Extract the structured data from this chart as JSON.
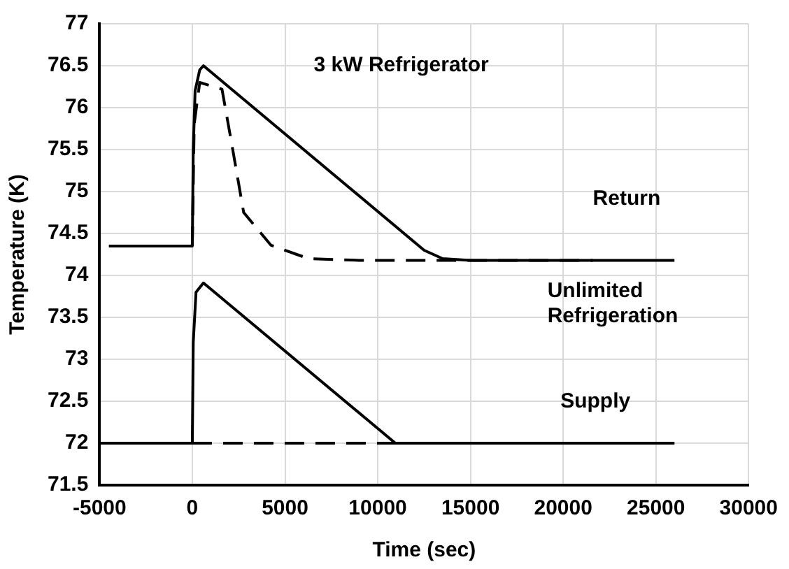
{
  "chart_data": {
    "type": "line",
    "xlabel": "Time (sec)",
    "ylabel": "Temperature (K)",
    "xlim": [
      -5000,
      30000
    ],
    "xticks": [
      -5000,
      0,
      5000,
      10000,
      15000,
      20000,
      25000,
      30000
    ],
    "ylim": [
      71.5,
      77
    ],
    "yticks": [
      71.5,
      72,
      72.5,
      73,
      73.5,
      74,
      74.5,
      75,
      75.5,
      76,
      76.5,
      77
    ],
    "grid": true,
    "legend": false,
    "marker": "none",
    "series": [
      {
        "color": "#000000",
        "line_style": "dashed",
        "x": [
          0,
          26000
        ],
        "values": [
          72,
          72
        ]
      },
      {
        "color": "#000000",
        "line_style": "solid",
        "x": [
          -5000,
          0,
          50,
          200,
          600,
          10950,
          26000
        ],
        "values": [
          72,
          72,
          73.2,
          73.8,
          73.91,
          72,
          72
        ]
      },
      {
        "color": "#000000",
        "line_style": "dashed",
        "x": [
          0,
          100,
          400,
          1600,
          2140,
          2770,
          4240,
          6270,
          9000,
          21600
        ],
        "values": [
          74.35,
          75.8,
          76.3,
          76.22,
          75.55,
          74.75,
          74.36,
          74.2,
          74.18,
          74.18
        ]
      },
      {
        "color": "#000000",
        "line_style": "solid",
        "x": [
          -4500,
          0,
          50,
          150,
          400,
          600,
          12500,
          13500,
          15000,
          26000
        ],
        "values": [
          74.35,
          74.35,
          75.5,
          76.2,
          76.45,
          76.5,
          74.3,
          74.2,
          74.18,
          74.18
        ]
      }
    ],
    "annotations": [
      "3 kW Refrigerator",
      "Return",
      "Unlimited Refrigeration",
      "Supply"
    ]
  }
}
